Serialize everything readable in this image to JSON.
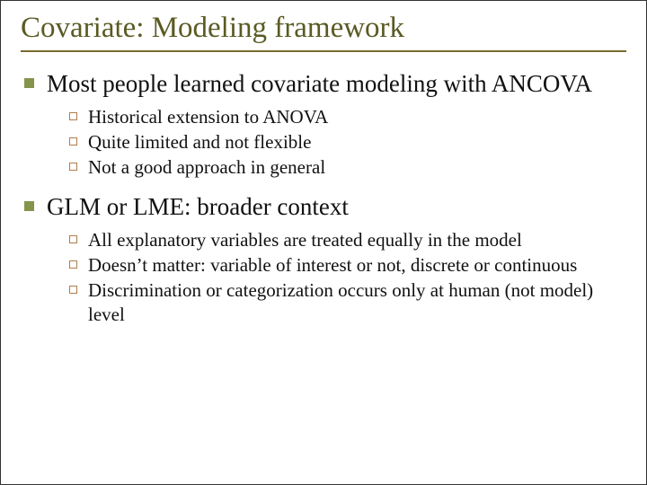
{
  "colors": {
    "title": "#5a5a24",
    "rule": "#7a6a2a",
    "body": "#111111",
    "bullet1": "#84944c",
    "bullet2_border": "#b07d4a"
  },
  "title": "Covariate: Modeling framework",
  "sections": [
    {
      "heading": "Most people learned covariate modeling with ANCOVA",
      "items": [
        "Historical extension to ANOVA",
        "Quite limited and not flexible",
        "Not a good approach in general"
      ]
    },
    {
      "heading": "GLM or LME: broader context",
      "items": [
        "All explanatory variables are treated equally in the model",
        "Doesn’t matter: variable of interest or not, discrete or continuous",
        "Discrimination or categorization occurs only at human (not model) level"
      ]
    }
  ]
}
